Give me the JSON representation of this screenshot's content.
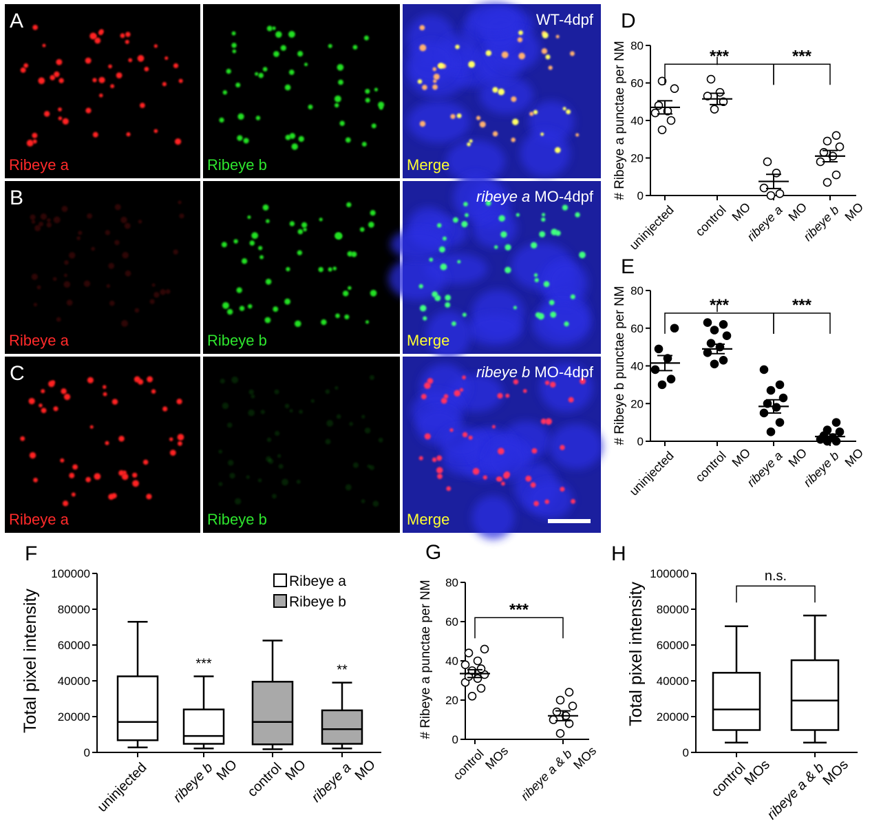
{
  "micrographs": {
    "row_labels": [
      "A",
      "B",
      "C"
    ],
    "conditions": [
      "WT-4dpf",
      "MO-4dpf",
      "MO-4dpf"
    ],
    "condition_italic": [
      "",
      "ribeye a",
      "ribeye b"
    ],
    "channels": [
      "Ribeye a",
      "Ribeye b",
      "Merge"
    ]
  },
  "panel_labels": {
    "D": "D",
    "E": "E",
    "F": "F",
    "G": "G",
    "H": "H"
  },
  "chart_data": [
    {
      "panel": "D",
      "type": "scatter",
      "ylabel": "# Ribeye a punctae per NM",
      "ylim": [
        0,
        80
      ],
      "yticks": [
        0,
        20,
        40,
        60,
        80
      ],
      "categories": [
        [
          "uninjected",
          ""
        ],
        [
          "control",
          "MO"
        ],
        [
          "ribeye a",
          "MO"
        ],
        [
          "ribeye b",
          "MO"
        ]
      ],
      "italic_first_line": [
        false,
        false,
        true,
        true
      ],
      "marker": "open",
      "points": [
        [
          35,
          40,
          44,
          45,
          48,
          57,
          61
        ],
        [
          46,
          50,
          53,
          55,
          62
        ],
        [
          0,
          1,
          4,
          12,
          18
        ],
        [
          7,
          11,
          18,
          21,
          23,
          26,
          29,
          32
        ]
      ],
      "means": [
        47,
        51.5,
        7.5,
        21
      ],
      "sems": [
        3.5,
        3,
        3.8,
        3
      ],
      "significance": [
        {
          "from": 0,
          "to": 2,
          "label": "***",
          "y": 70
        },
        {
          "from": 1,
          "to": 2,
          "label": "",
          "y": 74
        },
        {
          "from": 2,
          "to": 3,
          "label": "***",
          "y": 70
        }
      ]
    },
    {
      "panel": "E",
      "type": "scatter",
      "ylabel": "# Ribeye b punctae per NM",
      "ylim": [
        0,
        80
      ],
      "yticks": [
        0,
        20,
        40,
        60,
        80
      ],
      "categories": [
        [
          "uninjected",
          ""
        ],
        [
          "control",
          "MO"
        ],
        [
          "ribeye a",
          "MO"
        ],
        [
          "ribeye b",
          "MO"
        ]
      ],
      "italic_first_line": [
        false,
        false,
        true,
        true
      ],
      "marker": "filled",
      "points": [
        [
          30,
          33,
          38,
          44,
          49,
          60
        ],
        [
          41,
          43,
          47,
          50,
          52,
          56,
          59,
          62,
          63
        ],
        [
          5,
          10,
          15,
          18,
          20,
          23,
          27,
          30,
          38
        ],
        [
          0,
          0,
          1,
          2,
          3,
          5,
          6,
          10
        ]
      ],
      "means": [
        41.5,
        49,
        18.5,
        2.5
      ],
      "sems": [
        4,
        2.5,
        3.5,
        1.3
      ],
      "significance": [
        {
          "from": 0,
          "to": 2,
          "label": "***",
          "y": 68
        },
        {
          "from": 1,
          "to": 2,
          "label": "",
          "y": 73
        },
        {
          "from": 2,
          "to": 3,
          "label": "***",
          "y": 68
        }
      ]
    },
    {
      "panel": "F",
      "type": "box",
      "ylabel": "Total pixel intensity",
      "ylim": [
        0,
        100000
      ],
      "yticks": [
        0,
        20000,
        40000,
        60000,
        80000,
        100000
      ],
      "categories": [
        [
          "uninjected",
          ""
        ],
        [
          "ribeye b",
          "MO"
        ],
        [
          "control",
          "MO"
        ],
        [
          "ribeye a",
          "MO"
        ]
      ],
      "italic_first_line": [
        false,
        true,
        false,
        true
      ],
      "legend": [
        "Ribeye a",
        "Ribeye b"
      ],
      "legend_colors": [
        "#ffffff",
        "#a9a9a9"
      ],
      "boxes": [
        {
          "series": 0,
          "min": 2800,
          "q1": 6800,
          "median": 17000,
          "q3": 42500,
          "max": 73000,
          "sig": ""
        },
        {
          "series": 0,
          "min": 2200,
          "q1": 4800,
          "median": 9200,
          "q3": 24000,
          "max": 42500,
          "sig": "***"
        },
        {
          "series": 1,
          "min": 1800,
          "q1": 4500,
          "median": 17000,
          "q3": 39500,
          "max": 62500,
          "sig": ""
        },
        {
          "series": 1,
          "min": 2200,
          "q1": 4800,
          "median": 13000,
          "q3": 23500,
          "max": 39000,
          "sig": "**"
        }
      ]
    },
    {
      "panel": "G",
      "type": "scatter",
      "ylabel": "# Ribeye a punctae per NM",
      "ylim": [
        0,
        80
      ],
      "yticks": [
        0,
        20,
        40,
        60,
        80
      ],
      "categories": [
        [
          "control",
          "MOs"
        ],
        [
          "ribeye a & b",
          "MOs"
        ]
      ],
      "italic_first_line": [
        false,
        true
      ],
      "marker": "open",
      "points": [
        [
          22,
          26,
          29,
          31,
          32,
          33,
          35,
          36,
          38,
          40,
          44,
          46
        ],
        [
          3,
          8,
          10,
          12,
          14,
          17,
          20,
          24
        ]
      ],
      "means": [
        33.5,
        12
      ],
      "sems": [
        2,
        2.5
      ],
      "significance": [
        {
          "from": 0,
          "to": 1,
          "label": "***",
          "y": 62
        }
      ]
    },
    {
      "panel": "H",
      "type": "box",
      "ylabel": "Total pixel intensity",
      "ylim": [
        0,
        100000
      ],
      "yticks": [
        0,
        20000,
        40000,
        60000,
        80000,
        100000
      ],
      "categories": [
        [
          "control",
          "MOs"
        ],
        [
          "ribeye a & b",
          "MOs"
        ]
      ],
      "italic_first_line": [
        false,
        true
      ],
      "boxes": [
        {
          "series": 0,
          "min": 5500,
          "q1": 12500,
          "median": 24000,
          "q3": 44500,
          "max": 70500,
          "sig": ""
        },
        {
          "series": 0,
          "min": 5500,
          "q1": 12500,
          "median": 29000,
          "q3": 51500,
          "max": 76500,
          "sig": ""
        }
      ],
      "significance": [
        {
          "from": 0,
          "to": 1,
          "label": "n.s.",
          "y": 93000
        }
      ]
    }
  ]
}
